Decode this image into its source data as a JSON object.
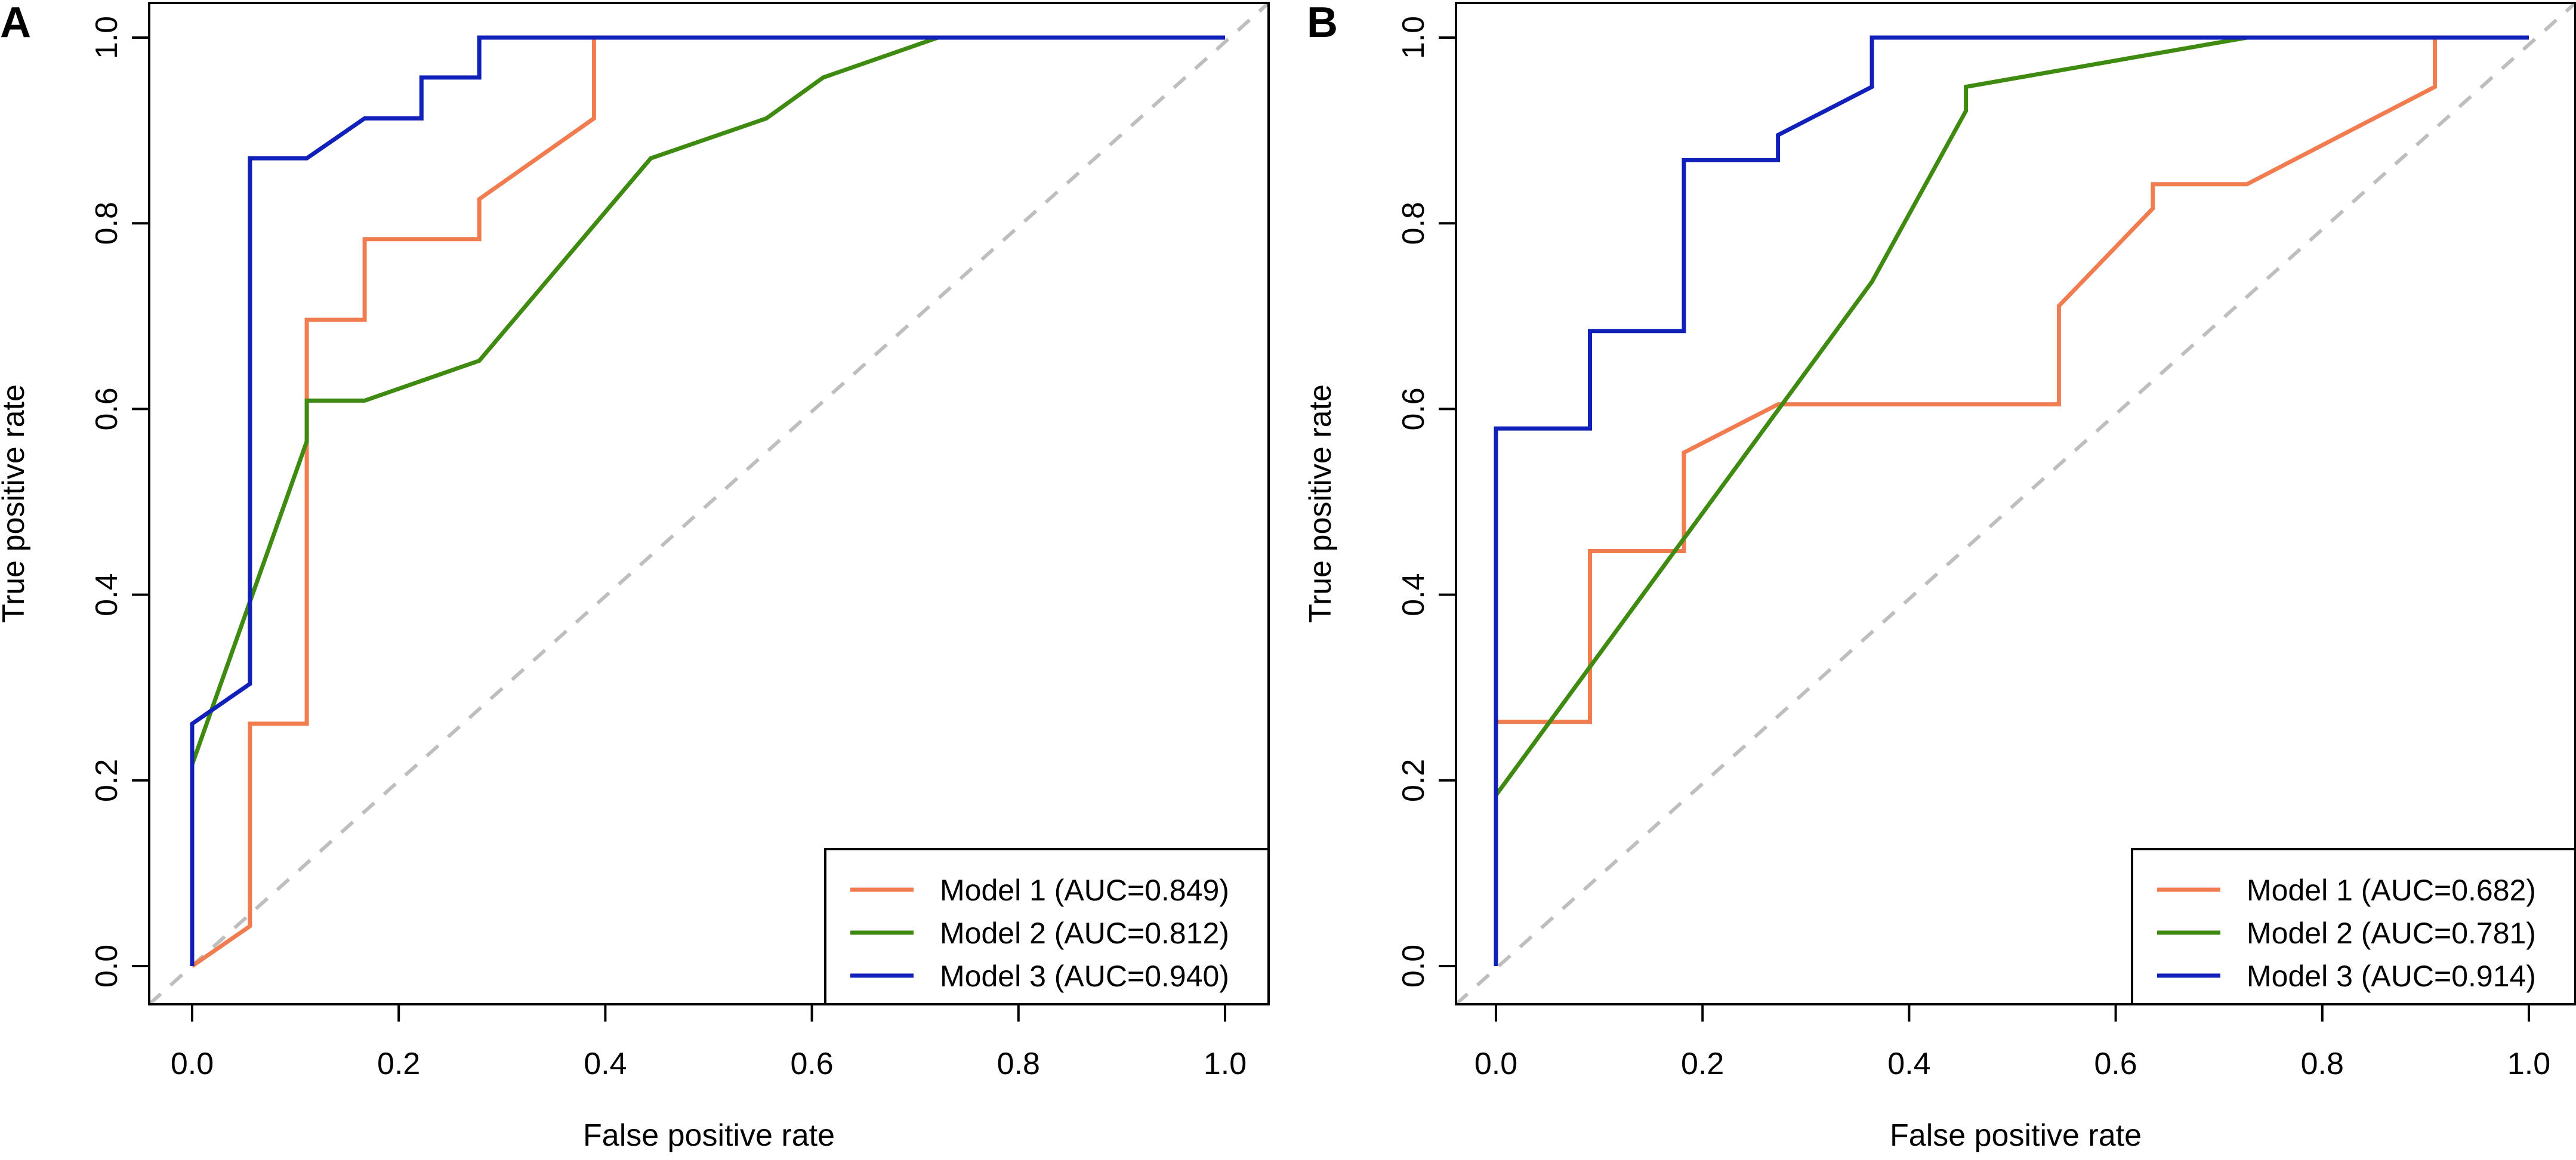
{
  "chart_data": [
    {
      "type": "line",
      "panel_label": "A",
      "xlabel": "False positive rate",
      "ylabel": "True positive rate",
      "xlim": [
        0,
        1
      ],
      "ylim": [
        0,
        1
      ],
      "x_ticks": [
        "0.0",
        "0.2",
        "0.4",
        "0.6",
        "0.8",
        "1.0"
      ],
      "y_ticks": [
        "0.0",
        "0.2",
        "0.4",
        "0.6",
        "0.8",
        "1.0"
      ],
      "reference_line": {
        "style": "dashed",
        "color": "#bebebe",
        "from": [
          0,
          0
        ],
        "to": [
          1,
          1
        ]
      },
      "legend_position": "bottom-right",
      "series": [
        {
          "name": "Model 1 (AUC=0.849)",
          "color": "#f07c50",
          "x": [
            0,
            0.056,
            0.056,
            0.111,
            0.111,
            0.167,
            0.167,
            0.278,
            0.278,
            0.389,
            0.389,
            1.0
          ],
          "y": [
            0,
            0.043,
            0.261,
            0.261,
            0.696,
            0.696,
            0.783,
            0.783,
            0.826,
            0.913,
            1.0,
            1.0
          ]
        },
        {
          "name": "Model 2 (AUC=0.812)",
          "color": "#3f8a10",
          "x": [
            0,
            0,
            0.111,
            0.111,
            0.167,
            0.278,
            0.444,
            0.556,
            0.611,
            0.722,
            1.0
          ],
          "y": [
            0,
            0.217,
            0.565,
            0.609,
            0.609,
            0.652,
            0.87,
            0.913,
            0.957,
            1.0,
            1.0
          ]
        },
        {
          "name": "Model 3 (AUC=0.940)",
          "color": "#1020b8",
          "x": [
            0,
            0,
            0.056,
            0.056,
            0.111,
            0.167,
            0.222,
            0.222,
            0.278,
            0.278,
            1.0
          ],
          "y": [
            0,
            0.261,
            0.304,
            0.87,
            0.87,
            0.913,
            0.913,
            0.957,
            0.957,
            1.0,
            1.0
          ]
        }
      ]
    },
    {
      "type": "line",
      "panel_label": "B",
      "xlabel": "False positive rate",
      "ylabel": "True positive rate",
      "xlim": [
        0,
        1
      ],
      "ylim": [
        0,
        1
      ],
      "x_ticks": [
        "0.0",
        "0.2",
        "0.4",
        "0.6",
        "0.8",
        "1.0"
      ],
      "y_ticks": [
        "0.0",
        "0.2",
        "0.4",
        "0.6",
        "0.8",
        "1.0"
      ],
      "reference_line": {
        "style": "dashed",
        "color": "#bebebe",
        "from": [
          0,
          0
        ],
        "to": [
          1,
          1
        ]
      },
      "legend_position": "bottom-right",
      "series": [
        {
          "name": "Model 1 (AUC=0.682)",
          "color": "#f07c50",
          "x": [
            0,
            0,
            0.091,
            0.091,
            0.182,
            0.182,
            0.273,
            0.545,
            0.545,
            0.636,
            0.636,
            0.727,
            0.909,
            0.909,
            1.0
          ],
          "y": [
            0,
            0.263,
            0.263,
            0.447,
            0.447,
            0.553,
            0.605,
            0.605,
            0.711,
            0.816,
            0.842,
            0.842,
            0.947,
            1.0,
            1.0
          ]
        },
        {
          "name": "Model 2 (AUC=0.781)",
          "color": "#3f8a10",
          "x": [
            0,
            0,
            0.364,
            0.455,
            0.455,
            0.727,
            1.0
          ],
          "y": [
            0,
            0.184,
            0.737,
            0.921,
            0.947,
            1.0,
            1.0
          ]
        },
        {
          "name": "Model 3 (AUC=0.914)",
          "color": "#1020b8",
          "x": [
            0,
            0,
            0.091,
            0.091,
            0.182,
            0.182,
            0.273,
            0.273,
            0.364,
            0.364,
            1.0
          ],
          "y": [
            0,
            0.579,
            0.579,
            0.684,
            0.684,
            0.868,
            0.868,
            0.895,
            0.947,
            1.0,
            1.0
          ]
        }
      ]
    }
  ]
}
